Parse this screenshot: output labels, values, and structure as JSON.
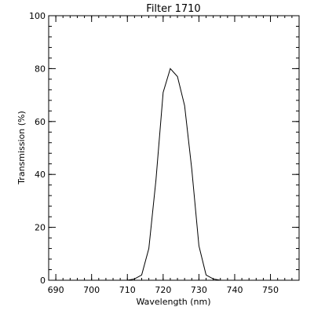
{
  "chart_data": {
    "type": "line",
    "title": "Filter  1710",
    "xlabel": "Wavelength (nm)",
    "ylabel": "Transmission (%)",
    "xlim": [
      688,
      758
    ],
    "ylim": [
      0,
      100
    ],
    "x_ticks": [
      690,
      700,
      710,
      720,
      730,
      740,
      750
    ],
    "y_ticks": [
      0,
      20,
      40,
      60,
      80,
      100
    ],
    "x_minor_step": 2,
    "y_minor_step": 4,
    "grid": false,
    "series": [
      {
        "x": [
          710,
          712,
          714,
          716,
          718,
          720,
          722,
          724,
          726,
          728,
          730,
          732,
          734,
          736
        ],
        "y": [
          0,
          0.5,
          2,
          12,
          38,
          71,
          80,
          77,
          66,
          42,
          13,
          2,
          0.5,
          0
        ]
      }
    ],
    "color": "#000000"
  }
}
